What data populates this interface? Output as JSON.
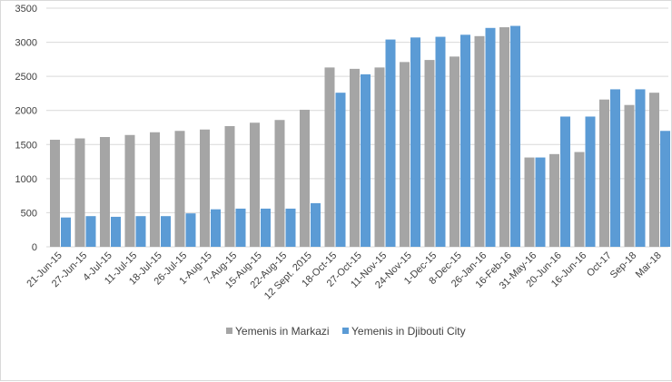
{
  "chart_data": {
    "type": "bar",
    "categories": [
      "21-Jun-15",
      "27-Jun-15",
      "4-Jul-15",
      "11-Jul-15",
      "18-Jul-15",
      "26-Jul-15",
      "1-Aug-15",
      "7-Aug-15",
      "15-Aug-15",
      "22-Aug-15",
      "12 Sept. 2015",
      "18-Oct-15",
      "27-Oct-15",
      "11-Nov-15",
      "24-Nov-15",
      "1-Dec-15",
      "8-Dec-15",
      "26-Jan-16",
      "16-Feb-16",
      "31-May-16",
      "20-Jun-16",
      "16-Jun-16",
      "Oct-17",
      "Sep-18",
      "Mar-18"
    ],
    "series": [
      {
        "name": "Yemenis in Markazi",
        "color": "#a5a5a5",
        "values": [
          1570,
          1590,
          1610,
          1640,
          1680,
          1700,
          1720,
          1770,
          1820,
          1860,
          2010,
          2630,
          2610,
          2630,
          2710,
          2740,
          2790,
          3090,
          3220,
          1310,
          1360,
          1390,
          2160,
          2080,
          2260
        ]
      },
      {
        "name": "Yemenis in Djibouti City",
        "color": "#5b9bd5",
        "values": [
          430,
          450,
          440,
          450,
          450,
          490,
          550,
          560,
          560,
          560,
          640,
          2260,
          2530,
          3040,
          3070,
          3080,
          3110,
          3210,
          3240,
          1310,
          1910,
          1910,
          2310,
          2310,
          1700
        ]
      }
    ],
    "yticks": [
      0,
      500,
      1000,
      1500,
      2000,
      2500,
      3000,
      3500
    ],
    "ylim": [
      0,
      3500
    ],
    "grid": true,
    "legend_position": "bottom-center",
    "title": "",
    "xlabel": "",
    "ylabel": ""
  }
}
